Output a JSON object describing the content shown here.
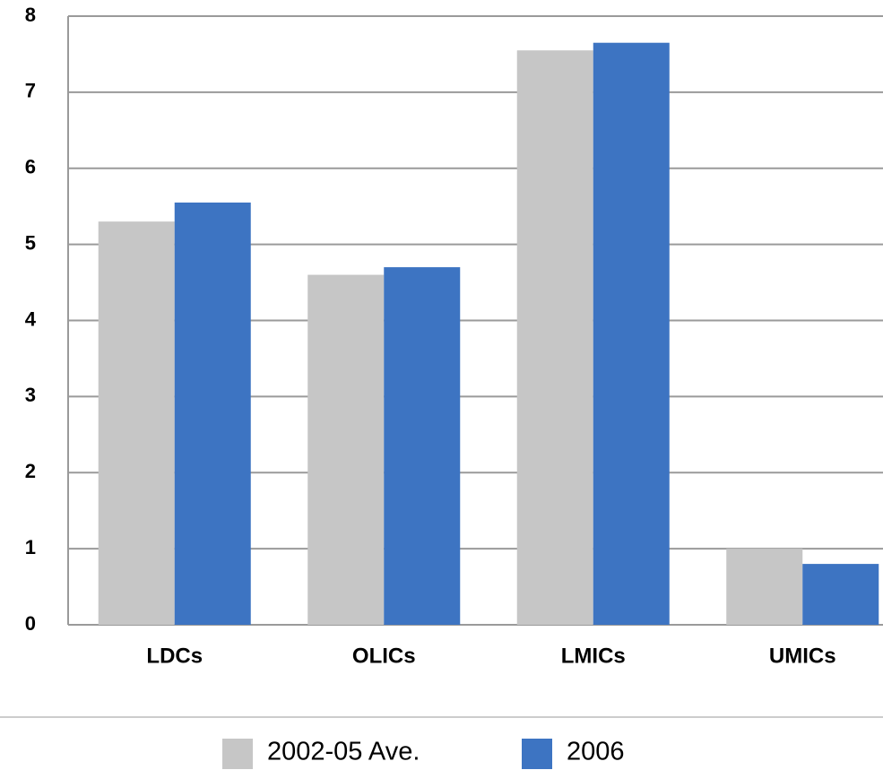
{
  "chart_data": {
    "type": "bar",
    "categories": [
      "LDCs",
      "OLICs",
      "LMICs",
      "UMICs"
    ],
    "series": [
      {
        "name": "2002-05 Ave.",
        "color": "#c6c6c6",
        "values": [
          5.3,
          4.6,
          7.55,
          1.0
        ]
      },
      {
        "name": "2006",
        "color": "#3d74c2",
        "values": [
          5.55,
          4.7,
          7.65,
          0.8
        ]
      }
    ],
    "ylim": [
      0,
      8
    ],
    "yticks": [
      0,
      1,
      2,
      3,
      4,
      5,
      6,
      7,
      8
    ],
    "grid": true
  }
}
